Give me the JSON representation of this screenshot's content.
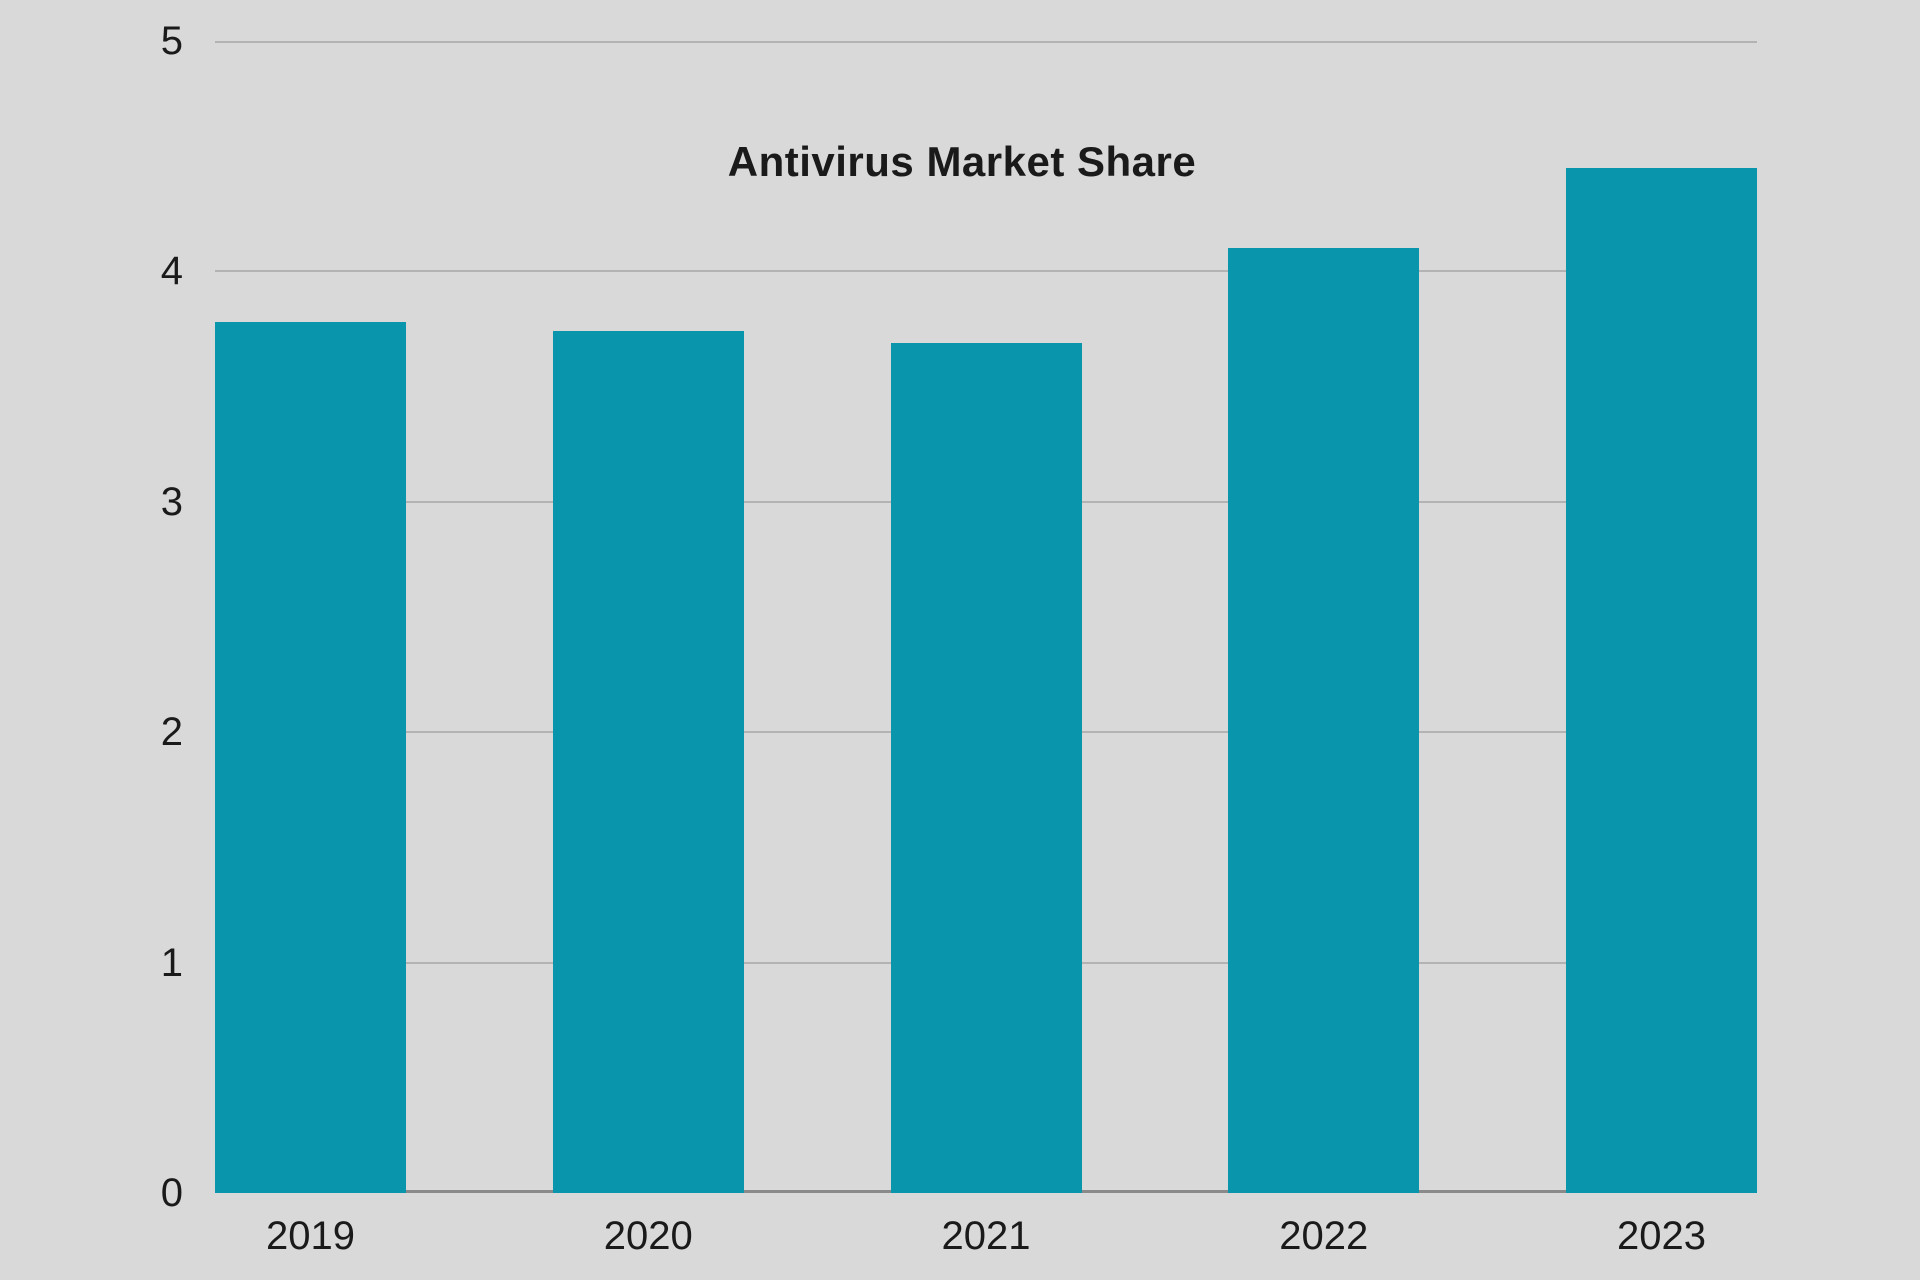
{
  "chart_data": {
    "type": "bar",
    "title": "Antivirus Market Share",
    "categories": [
      "2019",
      "2020",
      "2021",
      "2022",
      "2023"
    ],
    "values": [
      3.78,
      3.74,
      3.69,
      4.1,
      4.45
    ],
    "xlabel": "",
    "ylabel": "",
    "ylim": [
      0,
      5
    ],
    "yticks": [
      0,
      1,
      2,
      3,
      4,
      5
    ],
    "grid": "horizontal-only",
    "legend": "none",
    "colors": {
      "bar": "#0996ad",
      "background": "#d9d9d9",
      "gridline": "#b3b3b3",
      "baseline": "#8a8a8a",
      "text": "#1a1a1a"
    }
  }
}
